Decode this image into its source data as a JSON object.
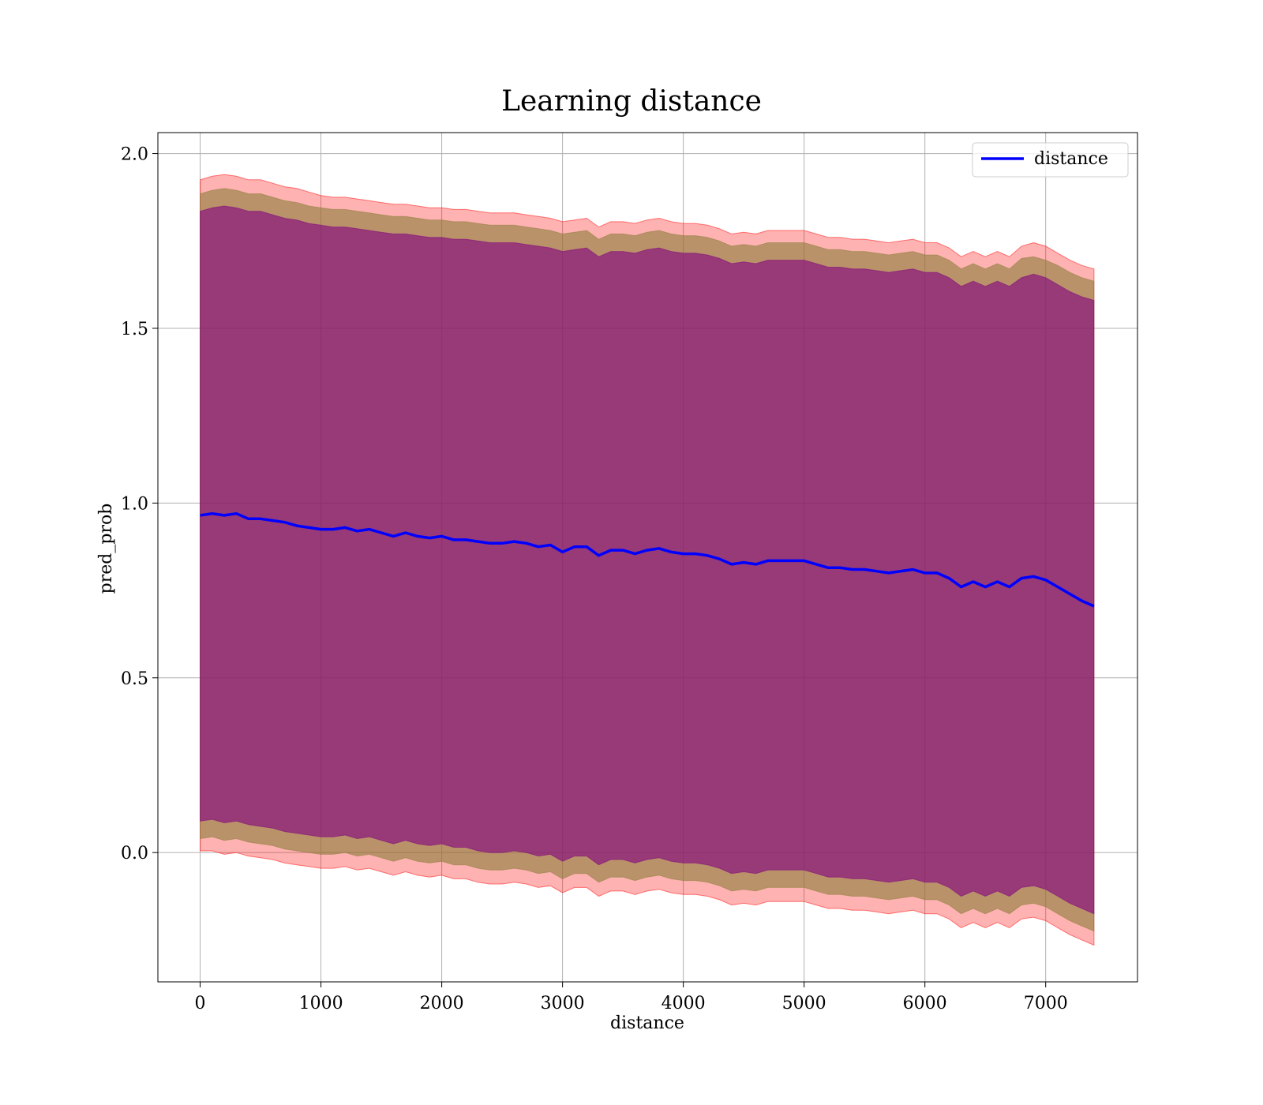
{
  "chart_data": {
    "type": "line",
    "title": "Learning distance",
    "xlabel": "distance",
    "ylabel": "pred_prob",
    "xlim": [
      -350,
      7760
    ],
    "ylim": [
      -0.37,
      2.06
    ],
    "x_ticks": [
      0,
      1000,
      2000,
      3000,
      4000,
      5000,
      6000,
      7000
    ],
    "x_tick_labels": [
      "0",
      "1000",
      "2000",
      "3000",
      "4000",
      "5000",
      "6000",
      "7000"
    ],
    "y_ticks": [
      0.0,
      0.5,
      1.0,
      1.5,
      2.0
    ],
    "y_tick_labels": [
      "0.0",
      "0.5",
      "1.0",
      "1.5",
      "2.0"
    ],
    "grid": true,
    "legend": {
      "position": "upper right",
      "entries": [
        "distance"
      ]
    },
    "colors": {
      "line": "#0000ff",
      "band_outer": "#ff0000",
      "band_middle": "#8b7d3a",
      "band_inner": "#800080"
    },
    "x": [
      0,
      100,
      200,
      300,
      400,
      500,
      600,
      700,
      800,
      900,
      1000,
      1100,
      1200,
      1300,
      1400,
      1500,
      1600,
      1700,
      1800,
      1900,
      2000,
      2100,
      2200,
      2300,
      2400,
      2500,
      2600,
      2700,
      2800,
      2900,
      3000,
      3100,
      3200,
      3300,
      3400,
      3500,
      3600,
      3700,
      3800,
      3900,
      4000,
      4100,
      4200,
      4300,
      4400,
      4500,
      4600,
      4700,
      4800,
      4900,
      5000,
      5100,
      5200,
      5300,
      5400,
      5500,
      5600,
      5700,
      5800,
      5900,
      6000,
      6100,
      6200,
      6300,
      6400,
      6500,
      6600,
      6700,
      6800,
      6900,
      7000,
      7100,
      7200,
      7300,
      7400
    ],
    "series": [
      {
        "name": "distance",
        "values": [
          0.965,
          0.97,
          0.965,
          0.97,
          0.955,
          0.955,
          0.95,
          0.945,
          0.935,
          0.93,
          0.925,
          0.925,
          0.93,
          0.92,
          0.925,
          0.915,
          0.905,
          0.915,
          0.905,
          0.9,
          0.905,
          0.895,
          0.895,
          0.89,
          0.885,
          0.885,
          0.89,
          0.885,
          0.875,
          0.88,
          0.86,
          0.875,
          0.875,
          0.85,
          0.865,
          0.865,
          0.855,
          0.865,
          0.87,
          0.86,
          0.855,
          0.855,
          0.85,
          0.84,
          0.825,
          0.83,
          0.825,
          0.835,
          0.835,
          0.835,
          0.835,
          0.825,
          0.815,
          0.815,
          0.81,
          0.81,
          0.805,
          0.8,
          0.805,
          0.81,
          0.8,
          0.8,
          0.785,
          0.76,
          0.775,
          0.76,
          0.775,
          0.76,
          0.785,
          0.79,
          0.78,
          0.76,
          0.74,
          0.72,
          0.705
        ]
      }
    ],
    "bands": [
      {
        "label": "outer",
        "upper": [
          1.925,
          1.935,
          1.94,
          1.935,
          1.925,
          1.925,
          1.915,
          1.905,
          1.9,
          1.89,
          1.88,
          1.875,
          1.875,
          1.87,
          1.865,
          1.86,
          1.855,
          1.855,
          1.85,
          1.845,
          1.845,
          1.84,
          1.84,
          1.835,
          1.83,
          1.83,
          1.83,
          1.825,
          1.82,
          1.815,
          1.805,
          1.81,
          1.815,
          1.79,
          1.805,
          1.805,
          1.8,
          1.81,
          1.815,
          1.805,
          1.8,
          1.8,
          1.795,
          1.785,
          1.77,
          1.775,
          1.77,
          1.78,
          1.78,
          1.78,
          1.78,
          1.77,
          1.76,
          1.76,
          1.755,
          1.755,
          1.75,
          1.745,
          1.75,
          1.755,
          1.745,
          1.745,
          1.73,
          1.705,
          1.72,
          1.705,
          1.72,
          1.705,
          1.735,
          1.745,
          1.735,
          1.715,
          1.695,
          1.68,
          1.67
        ],
        "lower": [
          0.005,
          0.005,
          -0.005,
          0.0,
          -0.01,
          -0.015,
          -0.02,
          -0.03,
          -0.035,
          -0.04,
          -0.045,
          -0.045,
          -0.04,
          -0.05,
          -0.045,
          -0.055,
          -0.065,
          -0.055,
          -0.065,
          -0.07,
          -0.065,
          -0.075,
          -0.075,
          -0.085,
          -0.09,
          -0.09,
          -0.085,
          -0.09,
          -0.1,
          -0.095,
          -0.115,
          -0.1,
          -0.1,
          -0.125,
          -0.11,
          -0.11,
          -0.12,
          -0.11,
          -0.105,
          -0.115,
          -0.12,
          -0.12,
          -0.125,
          -0.135,
          -0.15,
          -0.145,
          -0.15,
          -0.14,
          -0.14,
          -0.14,
          -0.14,
          -0.15,
          -0.16,
          -0.16,
          -0.165,
          -0.165,
          -0.17,
          -0.175,
          -0.17,
          -0.165,
          -0.175,
          -0.175,
          -0.19,
          -0.215,
          -0.2,
          -0.215,
          -0.2,
          -0.215,
          -0.19,
          -0.185,
          -0.195,
          -0.215,
          -0.235,
          -0.25,
          -0.265
        ]
      },
      {
        "label": "middle",
        "upper": [
          1.885,
          1.895,
          1.9,
          1.895,
          1.885,
          1.885,
          1.875,
          1.865,
          1.86,
          1.85,
          1.845,
          1.84,
          1.84,
          1.835,
          1.83,
          1.825,
          1.82,
          1.82,
          1.815,
          1.81,
          1.81,
          1.805,
          1.805,
          1.8,
          1.795,
          1.795,
          1.795,
          1.79,
          1.785,
          1.78,
          1.77,
          1.775,
          1.78,
          1.755,
          1.77,
          1.77,
          1.765,
          1.775,
          1.78,
          1.77,
          1.765,
          1.765,
          1.76,
          1.75,
          1.735,
          1.74,
          1.735,
          1.745,
          1.745,
          1.745,
          1.745,
          1.735,
          1.725,
          1.725,
          1.72,
          1.72,
          1.715,
          1.71,
          1.715,
          1.72,
          1.71,
          1.71,
          1.695,
          1.67,
          1.685,
          1.67,
          1.685,
          1.67,
          1.7,
          1.705,
          1.695,
          1.68,
          1.66,
          1.645,
          1.635
        ],
        "lower": [
          0.04,
          0.045,
          0.035,
          0.04,
          0.03,
          0.025,
          0.02,
          0.01,
          0.005,
          0.0,
          -0.005,
          -0.005,
          0.0,
          -0.01,
          -0.005,
          -0.015,
          -0.025,
          -0.015,
          -0.025,
          -0.03,
          -0.025,
          -0.035,
          -0.035,
          -0.045,
          -0.05,
          -0.05,
          -0.045,
          -0.05,
          -0.06,
          -0.055,
          -0.075,
          -0.06,
          -0.06,
          -0.085,
          -0.07,
          -0.07,
          -0.08,
          -0.07,
          -0.065,
          -0.075,
          -0.08,
          -0.08,
          -0.085,
          -0.095,
          -0.11,
          -0.105,
          -0.11,
          -0.1,
          -0.1,
          -0.1,
          -0.1,
          -0.11,
          -0.12,
          -0.12,
          -0.125,
          -0.125,
          -0.13,
          -0.135,
          -0.13,
          -0.125,
          -0.135,
          -0.135,
          -0.15,
          -0.175,
          -0.16,
          -0.175,
          -0.16,
          -0.175,
          -0.15,
          -0.145,
          -0.155,
          -0.175,
          -0.195,
          -0.21,
          -0.225
        ]
      },
      {
        "label": "inner",
        "upper": [
          1.835,
          1.845,
          1.85,
          1.845,
          1.835,
          1.835,
          1.825,
          1.815,
          1.81,
          1.8,
          1.795,
          1.79,
          1.79,
          1.785,
          1.78,
          1.775,
          1.77,
          1.77,
          1.765,
          1.76,
          1.76,
          1.755,
          1.755,
          1.75,
          1.745,
          1.745,
          1.745,
          1.74,
          1.735,
          1.73,
          1.72,
          1.725,
          1.73,
          1.705,
          1.72,
          1.72,
          1.715,
          1.725,
          1.73,
          1.72,
          1.715,
          1.715,
          1.71,
          1.7,
          1.685,
          1.69,
          1.685,
          1.695,
          1.695,
          1.695,
          1.695,
          1.685,
          1.675,
          1.675,
          1.67,
          1.67,
          1.665,
          1.66,
          1.665,
          1.67,
          1.66,
          1.66,
          1.645,
          1.62,
          1.635,
          1.62,
          1.635,
          1.62,
          1.645,
          1.655,
          1.645,
          1.625,
          1.605,
          1.59,
          1.58
        ],
        "lower": [
          0.09,
          0.095,
          0.085,
          0.09,
          0.08,
          0.075,
          0.07,
          0.06,
          0.055,
          0.05,
          0.045,
          0.045,
          0.05,
          0.04,
          0.045,
          0.035,
          0.025,
          0.035,
          0.025,
          0.02,
          0.025,
          0.015,
          0.015,
          0.005,
          0.0,
          0.0,
          0.005,
          0.0,
          -0.01,
          -0.005,
          -0.025,
          -0.01,
          -0.01,
          -0.035,
          -0.02,
          -0.02,
          -0.03,
          -0.02,
          -0.015,
          -0.025,
          -0.03,
          -0.03,
          -0.035,
          -0.045,
          -0.06,
          -0.055,
          -0.06,
          -0.05,
          -0.05,
          -0.05,
          -0.05,
          -0.06,
          -0.07,
          -0.07,
          -0.075,
          -0.075,
          -0.08,
          -0.085,
          -0.08,
          -0.075,
          -0.085,
          -0.085,
          -0.1,
          -0.125,
          -0.11,
          -0.125,
          -0.11,
          -0.125,
          -0.1,
          -0.095,
          -0.105,
          -0.125,
          -0.145,
          -0.16,
          -0.175
        ]
      }
    ]
  }
}
